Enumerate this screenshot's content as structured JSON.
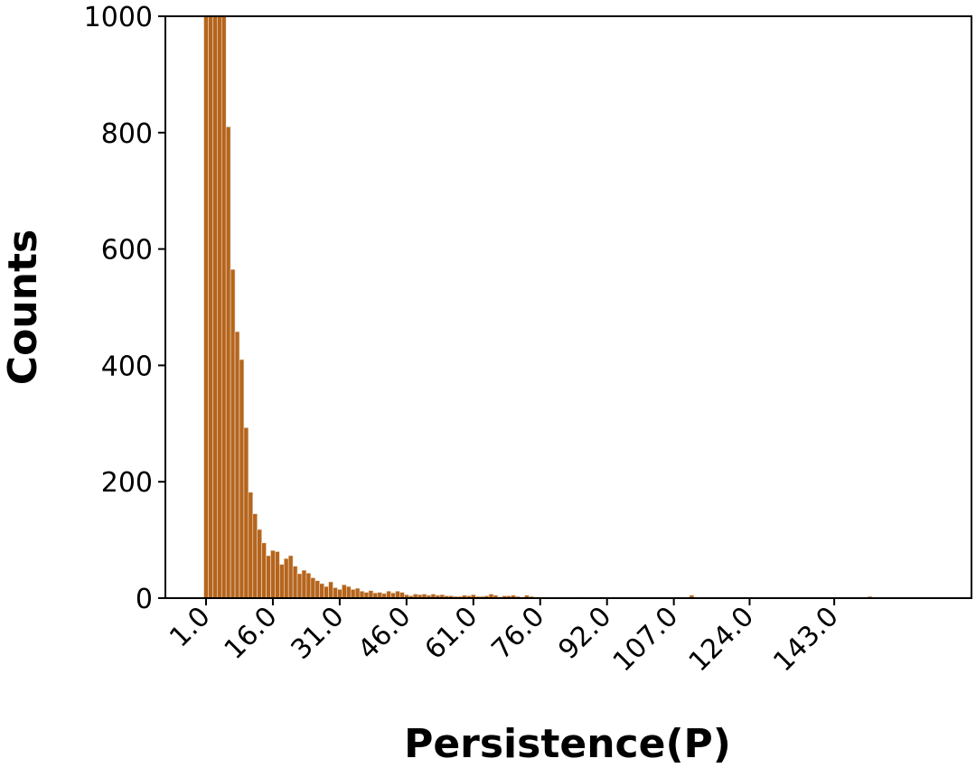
{
  "chart_data": {
    "type": "bar",
    "xlabel": "Persistence(P)",
    "ylabel": "Counts",
    "color": "#b5651d",
    "categories": [
      "1.0",
      null,
      null,
      null,
      null,
      null,
      null,
      null,
      null,
      null,
      null,
      null,
      null,
      null,
      null,
      "16.0",
      null,
      null,
      null,
      null,
      null,
      null,
      null,
      null,
      null,
      null,
      null,
      null,
      null,
      null,
      "31.0",
      null,
      null,
      null,
      null,
      null,
      null,
      null,
      null,
      null,
      null,
      null,
      null,
      null,
      null,
      "46.0",
      null,
      null,
      null,
      null,
      null,
      null,
      null,
      null,
      null,
      null,
      null,
      null,
      null,
      null,
      "61.0",
      null,
      null,
      null,
      null,
      null,
      null,
      null,
      null,
      null,
      null,
      null,
      null,
      null,
      null,
      "76.0",
      null,
      null,
      null,
      null,
      null,
      null,
      null,
      null,
      null,
      null,
      null,
      null,
      null,
      null,
      "92.0",
      null,
      null,
      null,
      null,
      null,
      null,
      null,
      null,
      null,
      null,
      null,
      null,
      null,
      null,
      "107.0",
      null,
      null,
      null,
      null,
      null,
      null,
      null,
      null,
      null,
      null,
      null,
      null,
      null,
      null,
      null,
      null,
      "124.0",
      null,
      null,
      null,
      null,
      null,
      null,
      null,
      null,
      null,
      null,
      null,
      null,
      null,
      null,
      null,
      null,
      null,
      null,
      "143.0",
      null,
      null,
      null,
      null,
      null,
      null,
      null,
      null,
      null,
      null,
      null,
      null,
      null,
      null,
      null,
      null,
      null,
      null
    ],
    "values": [
      1000,
      1000,
      1000,
      1000,
      1000,
      810,
      565,
      458,
      410,
      293,
      182,
      145,
      118,
      95,
      73,
      82,
      80,
      58,
      68,
      73,
      55,
      42,
      48,
      43,
      35,
      30,
      25,
      20,
      28,
      18,
      15,
      23,
      20,
      15,
      17,
      12,
      10,
      13,
      9,
      10,
      8,
      12,
      9,
      12,
      10,
      6,
      4,
      7,
      6,
      7,
      5,
      7,
      5,
      6,
      4,
      4,
      3,
      3,
      5,
      4,
      6,
      3,
      3,
      4,
      7,
      5,
      2,
      4,
      4,
      5,
      3,
      2,
      5,
      3,
      2,
      1,
      0,
      0,
      0,
      0,
      0,
      0,
      0,
      0,
      2,
      0,
      0,
      1,
      0,
      2,
      0,
      0,
      0,
      0,
      0,
      1,
      1,
      0,
      1,
      0,
      0,
      0,
      0,
      0,
      0,
      0,
      0,
      0,
      0,
      5,
      0,
      0,
      0,
      0,
      1,
      0,
      0,
      1,
      0,
      0,
      1,
      0,
      0,
      0,
      0,
      1,
      0,
      0,
      1,
      0,
      0,
      0,
      0,
      0,
      0,
      1,
      0,
      0,
      0,
      0,
      0,
      0,
      1,
      0,
      0,
      1,
      0,
      0,
      0,
      3,
      1,
      0,
      0,
      0,
      0,
      0,
      1,
      0,
      0,
      1
    ],
    "ylim": [
      0,
      1000
    ],
    "yticks": [
      0,
      200,
      400,
      600,
      800,
      1000
    ]
  }
}
